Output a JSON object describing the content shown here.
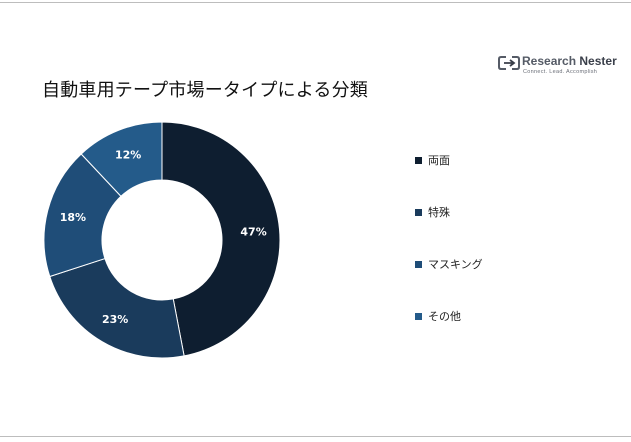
{
  "title": "自動車用テープ市場ータイプによる分類",
  "logo": {
    "name_part1": "Research",
    "name_part2": "Nester",
    "tagline": "Connect. Lead. Accomplish"
  },
  "chart_data": {
    "type": "pie",
    "donut": true,
    "categories": [
      "両面",
      "特殊",
      "マスキング",
      "その他"
    ],
    "values": [
      47,
      23,
      18,
      12
    ],
    "data_labels": [
      "47%",
      "23%",
      "18%",
      "12%"
    ],
    "colors": [
      "#0e1e30",
      "#1a3b5c",
      "#1f4d78",
      "#245b8a"
    ],
    "legend_position": "right",
    "start_angle_deg": 0,
    "direction": "clockwise"
  }
}
